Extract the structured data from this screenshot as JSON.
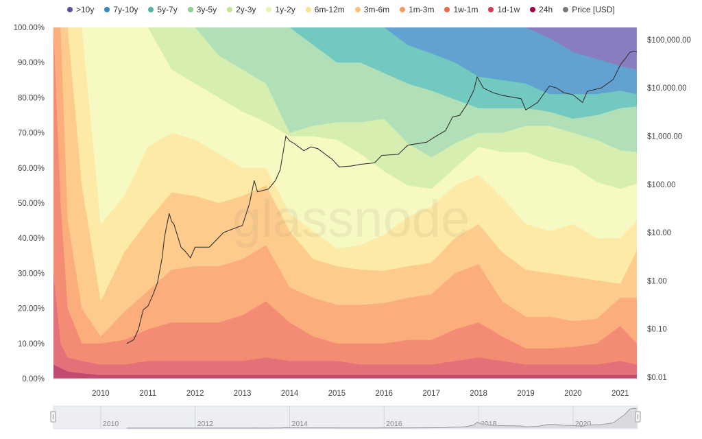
{
  "watermark": "glassnode",
  "legend": [
    {
      "label": ">10y",
      "color": "#5e4fa2"
    },
    {
      "label": "7y-10y",
      "color": "#3288bd"
    },
    {
      "label": "5y-7y",
      "color": "#4fb3a6"
    },
    {
      "label": "3y-5y",
      "color": "#8fcf8f"
    },
    {
      "label": "2y-3y",
      "color": "#c3e59a"
    },
    {
      "label": "1y-2y",
      "color": "#eaf4b0"
    },
    {
      "label": "6m-12m",
      "color": "#fbe38c"
    },
    {
      "label": "3m-6m",
      "color": "#fdc070"
    },
    {
      "label": "1m-3m",
      "color": "#f99a58"
    },
    {
      "label": "1w-1m",
      "color": "#ec6648"
    },
    {
      "label": "1d-1w",
      "color": "#d5394f"
    },
    {
      "label": "24h",
      "color": "#9e0142"
    },
    {
      "label": "Price [USD]",
      "color": "#777777"
    }
  ],
  "chart_data": {
    "type": "area",
    "stacked": true,
    "y_left": {
      "ticks": [
        "0.00%",
        "10.00%",
        "20.00%",
        "30.00%",
        "40.00%",
        "50.00%",
        "60.00%",
        "70.00%",
        "80.00%",
        "90.00%",
        "100.00%"
      ],
      "range": [
        0,
        100
      ]
    },
    "y_right": {
      "scale": "log",
      "ticks": [
        "$0.01",
        "$0.10",
        "$1.00",
        "$10.00",
        "$100.00",
        "$1,000.00",
        "$10,000.00",
        "$100,000.00"
      ],
      "range": [
        0.01,
        100000
      ]
    },
    "x": {
      "ticks": [
        "2010",
        "2011",
        "2012",
        "2013",
        "2014",
        "2015",
        "2016",
        "2017",
        "2018",
        "2019",
        "2020",
        "2021"
      ],
      "range": [
        2009.0,
        2021.35
      ]
    },
    "grid": false,
    "legend_position": "top",
    "dates": [
      2009.0,
      2009.15,
      2009.3,
      2009.6,
      2010.0,
      2010.5,
      2011.0,
      2011.5,
      2012.0,
      2012.5,
      2013.0,
      2013.5,
      2014.0,
      2014.5,
      2015.0,
      2015.5,
      2016.0,
      2016.5,
      2017.0,
      2017.5,
      2018.0,
      2018.5,
      2019.0,
      2019.5,
      2020.0,
      2020.5,
      2021.0,
      2021.35
    ],
    "series": [
      {
        "name": "24h",
        "fill": "#c24a70",
        "values": [
          4,
          3,
          2,
          1.5,
          1,
          1,
          1,
          1,
          1,
          1,
          1,
          1,
          1,
          1,
          1,
          1,
          1,
          1,
          1,
          1,
          1,
          1,
          1,
          1,
          1,
          1,
          1,
          1
        ]
      },
      {
        "name": "1d-1w",
        "fill": "#e4707a",
        "values": [
          26,
          7,
          4,
          3.5,
          3,
          3,
          4,
          4,
          4,
          4,
          4,
          5,
          4,
          4,
          4,
          3,
          3,
          3,
          3,
          4,
          5,
          4,
          3,
          3,
          3,
          3,
          4,
          3
        ]
      },
      {
        "name": "1w-1m",
        "fill": "#f48b74",
        "values": [
          70,
          40,
          14,
          5,
          6,
          7,
          9,
          11,
          11,
          11,
          13,
          16,
          11,
          7,
          5,
          6,
          6,
          7,
          7,
          9,
          10,
          7,
          4.6,
          4.6,
          5,
          6,
          10,
          6
        ]
      },
      {
        "name": "1m-3m",
        "fill": "#fbad7c",
        "values": [
          0,
          50,
          25,
          10,
          2,
          8,
          11,
          15,
          16,
          16,
          16,
          16,
          10,
          11,
          11,
          11,
          11.5,
          12,
          13,
          16,
          16.6,
          10,
          9,
          9,
          7.4,
          7,
          8,
          13
        ]
      },
      {
        "name": "3m-6m",
        "fill": "#fdcb8c",
        "values": [
          0,
          0,
          55,
          35,
          10,
          17,
          20,
          22,
          20,
          18,
          18,
          17,
          16,
          11,
          11,
          10,
          9.2,
          9,
          9,
          10,
          11.4,
          14,
          13.4,
          12.4,
          12.6,
          11,
          4,
          13.5
        ]
      },
      {
        "name": "6m-12m",
        "fill": "#fdeaa6",
        "values": [
          0,
          0,
          0,
          45,
          22,
          16,
          21,
          17,
          16,
          14,
          8,
          5,
          5,
          8,
          5,
          7,
          10.3,
          14,
          16,
          15,
          14,
          15.5,
          13,
          12,
          15,
          12,
          13,
          8.5
        ]
      },
      {
        "name": "1y-2y",
        "fill": "#f6f9c2",
        "values": [
          0,
          0,
          0,
          0,
          56,
          48,
          34,
          18,
          16,
          16,
          16,
          13,
          22,
          27,
          31,
          26,
          18,
          9,
          5,
          5,
          8,
          13,
          20.5,
          20,
          16.5,
          16,
          14,
          10.5
        ]
      },
      {
        "name": "2y-3y",
        "fill": "#d6efb0",
        "values": [
          0,
          0,
          0,
          0,
          0,
          0,
          0,
          12,
          16,
          12,
          12,
          11,
          1,
          3,
          5,
          9,
          15,
          12,
          9,
          7,
          4,
          5.5,
          7.5,
          10,
          9.5,
          12,
          11,
          9
        ]
      },
      {
        "name": "3y-5y",
        "fill": "#b0dfb8",
        "values": [
          0,
          0,
          0,
          0,
          0,
          0,
          0,
          0,
          0,
          8,
          12,
          16,
          30,
          23,
          17,
          17,
          13,
          17,
          19,
          12.5,
          7,
          7,
          5,
          4,
          4,
          7,
          12,
          13
        ]
      },
      {
        "name": "5y-7y",
        "fill": "#72c9bf",
        "values": [
          0,
          0,
          0,
          0,
          0,
          0,
          0,
          0,
          0,
          0,
          0,
          0,
          0,
          5,
          10,
          10,
          13,
          11,
          10.6,
          10.5,
          9,
          8,
          7,
          5,
          7,
          6,
          5,
          3.5
        ]
      },
      {
        "name": "7y-10y",
        "fill": "#62a2d0",
        "values": [
          0,
          0,
          0,
          0,
          0,
          0,
          0,
          0,
          0,
          0,
          0,
          0,
          0,
          0,
          0,
          0,
          0,
          5,
          7.4,
          10,
          14,
          15,
          16,
          16,
          12,
          10,
          7,
          7
        ]
      },
      {
        "name": ">10y",
        "fill": "#8a7dbf",
        "values": [
          0,
          0,
          0,
          0,
          0,
          0,
          0,
          0,
          0,
          0,
          0,
          0,
          0,
          0,
          0,
          0,
          0,
          0,
          0,
          0,
          0,
          0,
          0,
          3,
          7,
          9,
          11,
          12
        ]
      }
    ],
    "price": {
      "name": "Price [USD]",
      "color": "#333333",
      "points": [
        [
          2010.55,
          0.05
        ],
        [
          2010.7,
          0.06
        ],
        [
          2010.8,
          0.1
        ],
        [
          2010.9,
          0.25
        ],
        [
          2011.0,
          0.3
        ],
        [
          2011.1,
          0.5
        ],
        [
          2011.2,
          0.9
        ],
        [
          2011.3,
          3
        ],
        [
          2011.35,
          8
        ],
        [
          2011.45,
          25
        ],
        [
          2011.5,
          17
        ],
        [
          2011.55,
          15
        ],
        [
          2011.7,
          5
        ],
        [
          2011.8,
          4
        ],
        [
          2011.9,
          3
        ],
        [
          2012.0,
          5
        ],
        [
          2012.3,
          5
        ],
        [
          2012.6,
          10
        ],
        [
          2012.9,
          13
        ],
        [
          2013.0,
          14
        ],
        [
          2013.15,
          40
        ],
        [
          2013.25,
          120
        ],
        [
          2013.32,
          70
        ],
        [
          2013.55,
          80
        ],
        [
          2013.7,
          120
        ],
        [
          2013.8,
          200
        ],
        [
          2013.92,
          1000
        ],
        [
          2014.0,
          800
        ],
        [
          2014.1,
          700
        ],
        [
          2014.3,
          500
        ],
        [
          2014.45,
          600
        ],
        [
          2014.6,
          550
        ],
        [
          2014.9,
          330
        ],
        [
          2015.05,
          230
        ],
        [
          2015.3,
          240
        ],
        [
          2015.5,
          260
        ],
        [
          2015.8,
          280
        ],
        [
          2015.95,
          400
        ],
        [
          2016.3,
          420
        ],
        [
          2016.5,
          650
        ],
        [
          2016.9,
          750
        ],
        [
          2017.1,
          1000
        ],
        [
          2017.3,
          1300
        ],
        [
          2017.45,
          2500
        ],
        [
          2017.6,
          2700
        ],
        [
          2017.75,
          4500
        ],
        [
          2017.9,
          9000
        ],
        [
          2017.97,
          17000
        ],
        [
          2018.1,
          10000
        ],
        [
          2018.3,
          8000
        ],
        [
          2018.5,
          7000
        ],
        [
          2018.9,
          6000
        ],
        [
          2019.0,
          3500
        ],
        [
          2019.25,
          5000
        ],
        [
          2019.5,
          11000
        ],
        [
          2019.65,
          10000
        ],
        [
          2019.8,
          8000
        ],
        [
          2020.0,
          7200
        ],
        [
          2020.2,
          5000
        ],
        [
          2020.3,
          8500
        ],
        [
          2020.6,
          10000
        ],
        [
          2020.85,
          15000
        ],
        [
          2021.0,
          30000
        ],
        [
          2021.1,
          40000
        ],
        [
          2021.2,
          55000
        ],
        [
          2021.3,
          58000
        ],
        [
          2021.35,
          56000
        ]
      ]
    }
  },
  "navigator": {
    "labels": [
      "2010",
      "2012",
      "2014",
      "2016",
      "2018",
      "2020"
    ]
  }
}
